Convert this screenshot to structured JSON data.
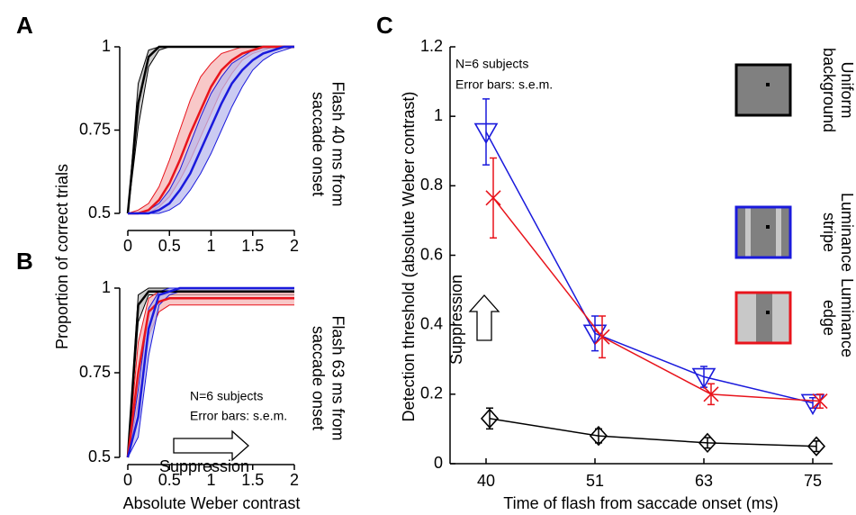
{
  "figure": {
    "ylabel": "Proportion of correct trials",
    "xlabel": "Absolute Weber contrast"
  },
  "chart_data": [
    {
      "type": "line",
      "label": "A",
      "annotation": [
        "Flash 40 ms from",
        "saccade onset"
      ],
      "x": [
        0,
        0.125,
        0.25,
        0.375,
        0.5,
        0.625,
        0.75,
        0.875,
        1,
        1.125,
        1.25,
        1.375,
        1.5,
        1.625,
        1.75,
        1.875,
        2
      ],
      "xlim": [
        0,
        2
      ],
      "xticks": [
        0,
        0.5,
        1,
        1.5,
        2
      ],
      "ylim": [
        0.5,
        1
      ],
      "yticks": [
        0.5,
        0.75,
        1
      ],
      "series": [
        {
          "color": "#000000",
          "band_color": "#bbbbbb",
          "values": [
            0.5,
            0.83,
            0.97,
            1,
            1,
            1,
            1,
            1,
            1,
            1,
            1,
            1,
            1,
            1,
            1,
            1,
            1
          ],
          "lower": [
            0.5,
            0.76,
            0.94,
            0.99,
            1,
            1,
            1,
            1,
            1,
            1,
            1,
            1,
            1,
            1,
            1,
            1,
            1
          ],
          "upper": [
            0.5,
            0.89,
            0.99,
            1,
            1,
            1,
            1,
            1,
            1,
            1,
            1,
            1,
            1,
            1,
            1,
            1,
            1
          ]
        },
        {
          "color": "#e8141c",
          "band_color": "#f5b5b5",
          "values": [
            0.5,
            0.5,
            0.51,
            0.54,
            0.59,
            0.66,
            0.74,
            0.81,
            0.88,
            0.93,
            0.96,
            0.98,
            0.99,
            1,
            1,
            1,
            1
          ],
          "lower": [
            0.5,
            0.5,
            0.5,
            0.52,
            0.55,
            0.6,
            0.66,
            0.73,
            0.8,
            0.87,
            0.92,
            0.96,
            0.98,
            0.99,
            1,
            1,
            1
          ],
          "upper": [
            0.5,
            0.51,
            0.53,
            0.58,
            0.66,
            0.75,
            0.84,
            0.91,
            0.95,
            0.98,
            0.99,
            1,
            1,
            1,
            1,
            1,
            1
          ]
        },
        {
          "color": "#1a1adc",
          "band_color": "#b9b9ee",
          "values": [
            0.5,
            0.5,
            0.5,
            0.51,
            0.53,
            0.57,
            0.62,
            0.69,
            0.76,
            0.83,
            0.89,
            0.93,
            0.96,
            0.98,
            0.99,
            1,
            1
          ],
          "lower": [
            0.5,
            0.5,
            0.5,
            0.5,
            0.51,
            0.53,
            0.57,
            0.62,
            0.68,
            0.75,
            0.82,
            0.88,
            0.93,
            0.96,
            0.98,
            0.99,
            1
          ],
          "upper": [
            0.5,
            0.5,
            0.51,
            0.53,
            0.57,
            0.63,
            0.71,
            0.79,
            0.86,
            0.91,
            0.95,
            0.97,
            0.99,
            1,
            1,
            1,
            1
          ]
        }
      ]
    },
    {
      "type": "line",
      "label": "B",
      "annotation": [
        "Flash 63 ms from",
        "saccade onset"
      ],
      "notes": [
        "N=6 subjects",
        "Error bars: s.e.m."
      ],
      "arrow_label": "Suppression",
      "x": [
        0,
        0.125,
        0.25,
        0.375,
        0.5,
        0.625,
        0.75,
        0.875,
        1,
        1.125,
        1.25,
        1.375,
        1.5,
        1.625,
        1.75,
        1.875,
        2
      ],
      "xlim": [
        0,
        2
      ],
      "xticks": [
        0,
        0.5,
        1,
        1.5,
        2
      ],
      "ylim": [
        0.5,
        1
      ],
      "yticks": [
        0.5,
        0.75,
        1
      ],
      "series": [
        {
          "color": "#000000",
          "band_color": "#bbbbbb",
          "values": [
            0.5,
            0.95,
            0.99,
            0.99,
            0.99,
            0.99,
            0.99,
            0.99,
            0.99,
            0.99,
            0.99,
            0.99,
            0.99,
            0.99,
            0.99,
            0.99,
            0.99
          ],
          "lower": [
            0.5,
            0.9,
            0.98,
            0.98,
            0.98,
            0.98,
            0.98,
            0.98,
            0.98,
            0.98,
            0.98,
            0.98,
            0.98,
            0.98,
            0.98,
            0.98,
            0.98
          ],
          "upper": [
            0.5,
            0.98,
            1,
            1,
            1,
            1,
            1,
            1,
            1,
            1,
            1,
            1,
            1,
            1,
            1,
            1,
            1
          ]
        },
        {
          "color": "#e8141c",
          "band_color": "#f5b5b5",
          "values": [
            0.5,
            0.75,
            0.93,
            0.96,
            0.97,
            0.97,
            0.97,
            0.97,
            0.97,
            0.97,
            0.97,
            0.97,
            0.97,
            0.97,
            0.97,
            0.97,
            0.97
          ],
          "lower": [
            0.5,
            0.66,
            0.86,
            0.93,
            0.95,
            0.95,
            0.95,
            0.95,
            0.95,
            0.95,
            0.95,
            0.95,
            0.95,
            0.95,
            0.95,
            0.95,
            0.95
          ],
          "upper": [
            0.5,
            0.84,
            0.97,
            0.99,
            0.99,
            0.99,
            0.99,
            0.99,
            0.99,
            0.99,
            0.99,
            0.99,
            0.99,
            0.99,
            0.99,
            0.99,
            0.99
          ]
        },
        {
          "color": "#1a1adc",
          "band_color": "#b9b9ee",
          "values": [
            0.5,
            0.62,
            0.88,
            0.98,
            0.99,
            1,
            1,
            1,
            1,
            1,
            1,
            1,
            1,
            1,
            1,
            1,
            1
          ],
          "lower": [
            0.5,
            0.56,
            0.8,
            0.95,
            0.98,
            0.99,
            0.99,
            0.99,
            0.99,
            0.99,
            0.99,
            0.99,
            0.99,
            0.99,
            0.99,
            0.99,
            0.99
          ],
          "upper": [
            0.5,
            0.7,
            0.94,
            0.99,
            1,
            1,
            1,
            1,
            1,
            1,
            1,
            1,
            1,
            1,
            1,
            1,
            1
          ]
        }
      ]
    },
    {
      "type": "errorline",
      "label": "C",
      "notes": [
        "N=6 subjects",
        "Error bars: s.e.m."
      ],
      "arrow_label": "Suppression",
      "xlabel": "Time of flash from saccade onset (ms)",
      "ylabel": "Detection threshold (absolute Weber contrast)",
      "categories": [
        "40",
        "51",
        "63",
        "75"
      ],
      "ylim": [
        0,
        1.2
      ],
      "yticks": [
        0,
        0.2,
        0.4,
        0.6,
        0.8,
        1,
        1.2
      ],
      "series": [
        {
          "name": "Uniform background",
          "color": "#000000",
          "marker": "diamond",
          "icon": "uniform",
          "values": [
            0.13,
            0.08,
            0.06,
            0.05
          ],
          "errors": [
            0.03,
            0.02,
            0.015,
            0.015
          ]
        },
        {
          "name": "Luminance stripe",
          "color": "#1a1adc",
          "marker": "triangle-down",
          "icon": "stripe",
          "values": [
            0.955,
            0.375,
            0.25,
            0.175
          ],
          "errors": [
            0.095,
            0.05,
            0.03,
            0.015
          ]
        },
        {
          "name": "Luminance edge",
          "color": "#e8141c",
          "marker": "x",
          "icon": "edge",
          "values": [
            0.765,
            0.365,
            0.2,
            0.18
          ],
          "errors": [
            0.115,
            0.06,
            0.03,
            0.02
          ]
        }
      ]
    }
  ]
}
